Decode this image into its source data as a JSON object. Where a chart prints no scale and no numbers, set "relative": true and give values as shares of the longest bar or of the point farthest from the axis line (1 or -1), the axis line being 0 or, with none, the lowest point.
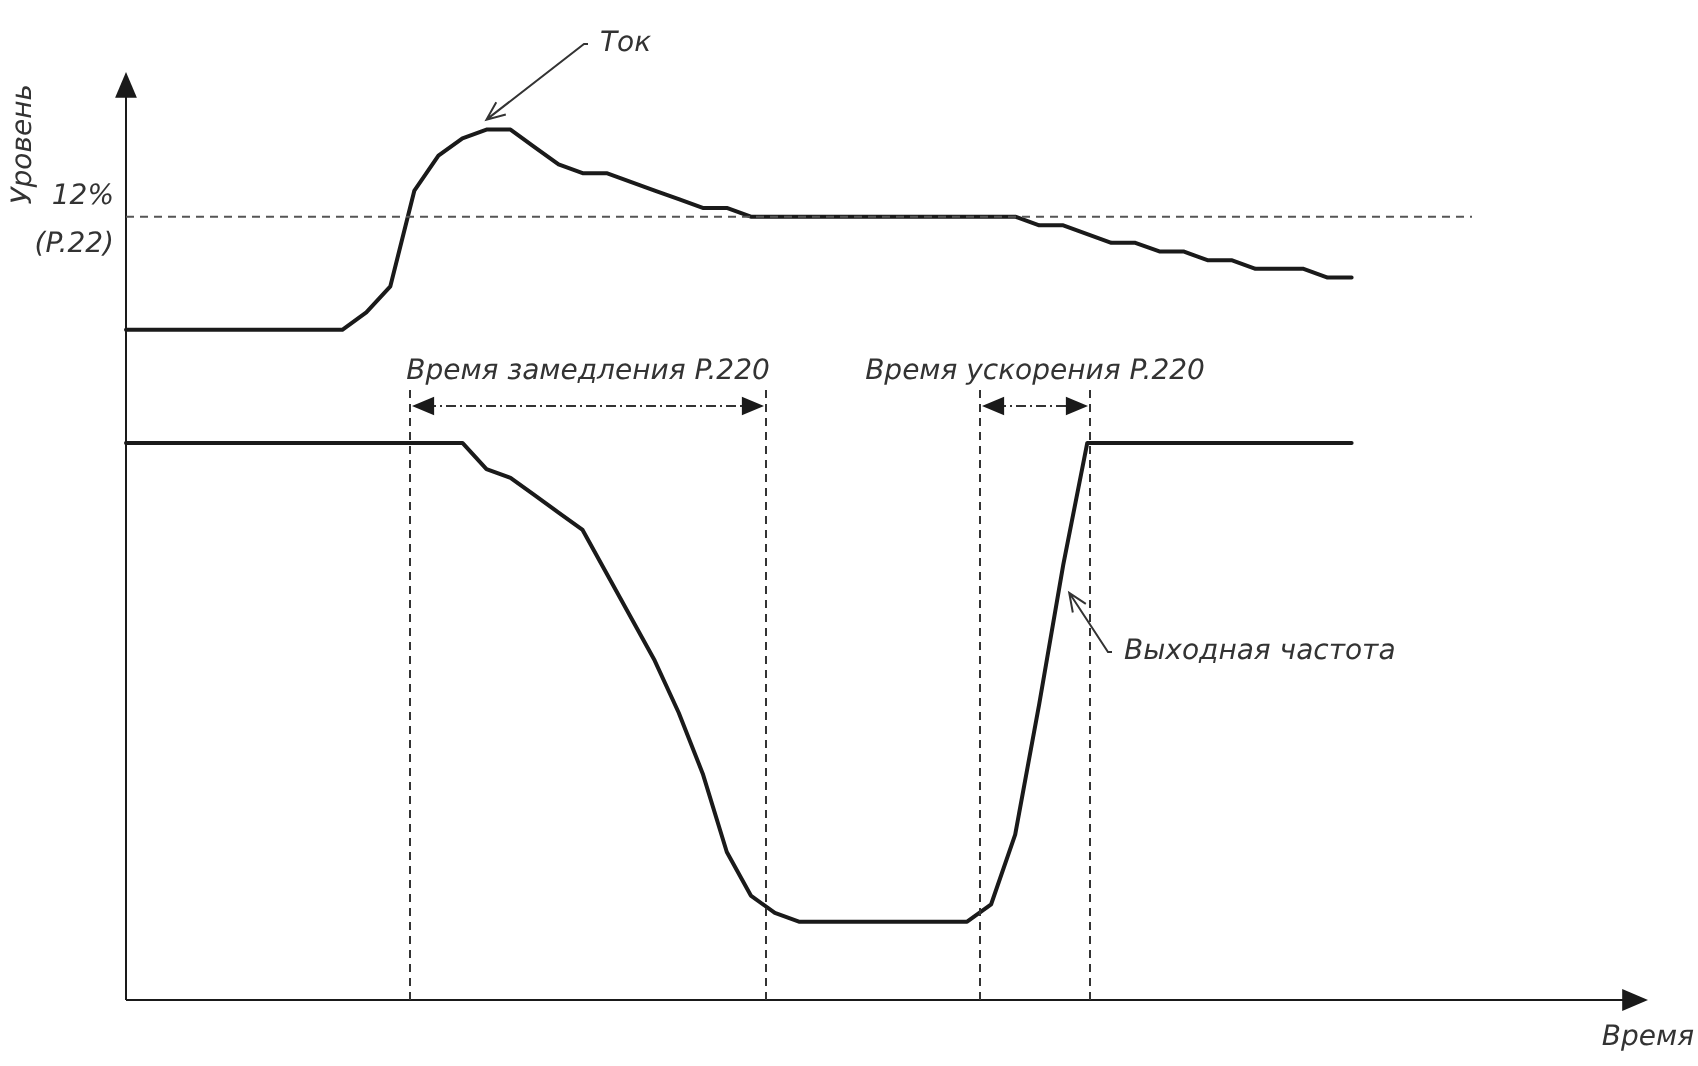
{
  "chart_data": {
    "type": "line",
    "relative": true,
    "xlabel": "Время",
    "ylabel": "Уровень",
    "legend": false,
    "marker": "none",
    "line_style": "solid",
    "categories": [
      null,
      null,
      null,
      null,
      null,
      null,
      null,
      null,
      null,
      null,
      null,
      null,
      null,
      null,
      null,
      null,
      null,
      null,
      null,
      null,
      null,
      null,
      null,
      null,
      null,
      null,
      null,
      null,
      null,
      null,
      null,
      null,
      null,
      null,
      null,
      null,
      null,
      null,
      null,
      null,
      null,
      null,
      null,
      null,
      null,
      null,
      null,
      null,
      null,
      null,
      null,
      null,
      null,
      null,
      null,
      null,
      null,
      null,
      null,
      null,
      null,
      null,
      null,
      null
    ],
    "series": [
      {
        "name": "Ток",
        "color": "#1a1a1a",
        "values": [
          0.77,
          0.77,
          0.77,
          0.77,
          0.77,
          0.77,
          0.77,
          0.77,
          0.77,
          0.77,
          0.79,
          0.82,
          0.93,
          0.97,
          0.99,
          1.0,
          1.0,
          0.98,
          0.96,
          0.95,
          0.95,
          0.94,
          0.93,
          0.92,
          0.91,
          0.91,
          0.9,
          0.9,
          0.9,
          0.9,
          0.9,
          0.9,
          0.9,
          0.9,
          0.9,
          0.9,
          0.9,
          0.9,
          0.89,
          0.89,
          0.88,
          0.87,
          0.87,
          0.86,
          0.86,
          0.85,
          0.85,
          0.84,
          0.84,
          0.84,
          0.83,
          0.83,
          null,
          null,
          null,
          null,
          null,
          null,
          null,
          null,
          null,
          null,
          null,
          null
        ]
      },
      {
        "name": "Выходная частота",
        "color": "#1a1a1a",
        "values": [
          0.64,
          0.64,
          0.64,
          0.64,
          0.64,
          0.64,
          0.64,
          0.64,
          0.64,
          0.64,
          0.64,
          0.64,
          0.64,
          0.64,
          0.64,
          0.61,
          0.6,
          0.58,
          0.56,
          0.54,
          0.49,
          0.44,
          0.39,
          0.33,
          0.26,
          0.17,
          0.12,
          0.1,
          0.09,
          0.09,
          0.09,
          0.09,
          0.09,
          0.09,
          0.09,
          0.09,
          0.11,
          0.19,
          0.34,
          0.5,
          0.64,
          0.64,
          0.64,
          0.64,
          0.64,
          0.64,
          0.64,
          0.64,
          0.64,
          0.64,
          0.64,
          0.64,
          null,
          null,
          null,
          null,
          null,
          null,
          null,
          null,
          null,
          null,
          null,
          null
        ]
      }
    ],
    "ref_lines": [
      {
        "axis": "y",
        "value": 0.9,
        "label": "12% (P.22)",
        "line_style": "dashed",
        "color": "#555555"
      }
    ],
    "annotations": [
      "Время замедления P.220",
      "Время ускорения P.220"
    ]
  }
}
